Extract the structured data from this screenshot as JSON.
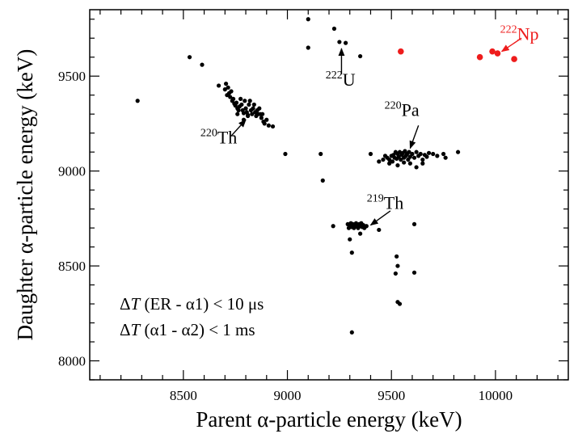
{
  "chart_data": {
    "type": "scatter",
    "title": "",
    "xlabel": "Parent α-particle energy (keV)",
    "ylabel": "Daughter α-particle energy (keV)",
    "xlim": [
      8050,
      10350
    ],
    "ylim": [
      7900,
      9850
    ],
    "xticks": [
      8500,
      9000,
      9500,
      10000
    ],
    "yticks": [
      8000,
      8500,
      9000,
      9500
    ],
    "xtick_labels": [
      "8500",
      "9000",
      "9500",
      "10000"
    ],
    "ytick_labels": [
      "8000",
      "8500",
      "9000",
      "9500"
    ],
    "grid": false,
    "legend": "none",
    "colors": {
      "black_series": "#000000",
      "np222": "#ee1c1c"
    },
    "conditions": [
      {
        "prefix": "Δ",
        "var": "T",
        "text": " (ER - α1) < 10 μs"
      },
      {
        "prefix": "Δ",
        "var": "T",
        "text": " (α1 - α2) < 1 ms"
      }
    ],
    "series": [
      {
        "name": "220Th",
        "mass": "220",
        "element": "Th",
        "color": "#000000",
        "points": [
          [
            8280,
            9370
          ],
          [
            8530,
            9600
          ],
          [
            8590,
            9560
          ],
          [
            8670,
            9450
          ],
          [
            8700,
            9430
          ],
          [
            8705,
            9460
          ],
          [
            8710,
            9400
          ],
          [
            8715,
            9440
          ],
          [
            8720,
            9410
          ],
          [
            8725,
            9390
          ],
          [
            8730,
            9420
          ],
          [
            8735,
            9370
          ],
          [
            8740,
            9380
          ],
          [
            8745,
            9355
          ],
          [
            8750,
            9345
          ],
          [
            8755,
            9360
          ],
          [
            8760,
            9330
          ],
          [
            8765,
            9320
          ],
          [
            8770,
            9340
          ],
          [
            8775,
            9380
          ],
          [
            8780,
            9350
          ],
          [
            8785,
            9320
          ],
          [
            8790,
            9305
          ],
          [
            8795,
            9370
          ],
          [
            8800,
            9330
          ],
          [
            8805,
            9310
          ],
          [
            8810,
            9295
          ],
          [
            8815,
            9350
          ],
          [
            8820,
            9370
          ],
          [
            8825,
            9320
          ],
          [
            8830,
            9300
          ],
          [
            8835,
            9330
          ],
          [
            8840,
            9350
          ],
          [
            8845,
            9310
          ],
          [
            8850,
            9290
          ],
          [
            8855,
            9320
          ],
          [
            8860,
            9300
          ],
          [
            8865,
            9330
          ],
          [
            8870,
            9300
          ],
          [
            8875,
            9280
          ],
          [
            8880,
            9300
          ],
          [
            8885,
            9260
          ],
          [
            8890,
            9250
          ],
          [
            8900,
            9270
          ],
          [
            8910,
            9240
          ],
          [
            8930,
            9235
          ],
          [
            8760,
            9300
          ],
          [
            8790,
            9270
          ],
          [
            8810,
            9290
          ]
        ],
        "label_pos": [
          8670,
          9145
        ],
        "arrow_from": [
          8730,
          9185
        ],
        "arrow_to": [
          8800,
          9270
        ]
      },
      {
        "name": "222U",
        "mass": "222",
        "element": "U",
        "color": "#000000",
        "points": [
          [
            9100,
            9800
          ],
          [
            9100,
            9650
          ],
          [
            9225,
            9750
          ],
          [
            9250,
            9680
          ],
          [
            9280,
            9675
          ],
          [
            9350,
            9605
          ]
        ],
        "label_pos": [
          9255,
          9450
        ],
        "arrow_from": [
          9260,
          9510
        ],
        "arrow_to": [
          9260,
          9645
        ]
      },
      {
        "name": "220Pa",
        "mass": "220",
        "element": "Pa",
        "color": "#000000",
        "points": [
          [
            8990,
            9090
          ],
          [
            9160,
            9090
          ],
          [
            9170,
            8950
          ],
          [
            9400,
            9090
          ],
          [
            9440,
            9050
          ],
          [
            9460,
            9060
          ],
          [
            9470,
            9080
          ],
          [
            9480,
            9070
          ],
          [
            9490,
            9060
          ],
          [
            9500,
            9080
          ],
          [
            9505,
            9050
          ],
          [
            9510,
            9085
          ],
          [
            9515,
            9070
          ],
          [
            9520,
            9100
          ],
          [
            9525,
            9065
          ],
          [
            9530,
            9090
          ],
          [
            9535,
            9075
          ],
          [
            9540,
            9100
          ],
          [
            9545,
            9060
          ],
          [
            9550,
            9085
          ],
          [
            9555,
            9095
          ],
          [
            9560,
            9070
          ],
          [
            9565,
            9105
          ],
          [
            9570,
            9080
          ],
          [
            9575,
            9090
          ],
          [
            9580,
            9060
          ],
          [
            9585,
            9100
          ],
          [
            9590,
            9075
          ],
          [
            9600,
            9090
          ],
          [
            9610,
            9070
          ],
          [
            9620,
            9100
          ],
          [
            9630,
            9080
          ],
          [
            9640,
            9090
          ],
          [
            9650,
            9060
          ],
          [
            9660,
            9085
          ],
          [
            9670,
            9075
          ],
          [
            9680,
            9095
          ],
          [
            9700,
            9090
          ],
          [
            9720,
            9080
          ],
          [
            9750,
            9090
          ],
          [
            9760,
            9070
          ],
          [
            9820,
            9100
          ],
          [
            9490,
            9040
          ],
          [
            9530,
            9030
          ],
          [
            9560,
            9045
          ],
          [
            9590,
            9040
          ],
          [
            9620,
            9020
          ],
          [
            9650,
            9040
          ]
        ],
        "label_pos": [
          9550,
          9290
        ],
        "arrow_from": [
          9630,
          9240
        ],
        "arrow_to": [
          9590,
          9120
        ]
      },
      {
        "name": "219Th",
        "mass": "219",
        "element": "Th",
        "color": "#000000",
        "points": [
          [
            9220,
            8710
          ],
          [
            9290,
            8720
          ],
          [
            9295,
            8700
          ],
          [
            9300,
            8715
          ],
          [
            9305,
            8725
          ],
          [
            9310,
            8705
          ],
          [
            9315,
            8720
          ],
          [
            9320,
            8700
          ],
          [
            9325,
            8715
          ],
          [
            9330,
            8725
          ],
          [
            9335,
            8710
          ],
          [
            9340,
            8700
          ],
          [
            9345,
            8720
          ],
          [
            9350,
            8710
          ],
          [
            9355,
            8725
          ],
          [
            9360,
            8705
          ],
          [
            9365,
            8715
          ],
          [
            9370,
            8700
          ],
          [
            9380,
            8710
          ],
          [
            9350,
            8670
          ],
          [
            9300,
            8640
          ],
          [
            9440,
            8690
          ],
          [
            9310,
            8570
          ],
          [
            9610,
            8720
          ],
          [
            9525,
            8550
          ],
          [
            9530,
            8500
          ],
          [
            9520,
            8460
          ],
          [
            9610,
            8465
          ],
          [
            9530,
            8310
          ],
          [
            9540,
            8300
          ],
          [
            9310,
            8150
          ]
        ],
        "label_pos": [
          9470,
          8800
        ],
        "arrow_from": [
          9495,
          8790
        ],
        "arrow_to": [
          9400,
          8715
        ]
      },
      {
        "name": "222Np",
        "mass": "222",
        "element": "Np",
        "color": "#ee1c1c",
        "points": [
          [
            9545,
            9630
          ],
          [
            9925,
            9600
          ],
          [
            9985,
            9630
          ],
          [
            10010,
            9620
          ],
          [
            10090,
            9590
          ]
        ],
        "label_pos": [
          10115,
          9690
        ],
        "arrow_from": [
          10125,
          9700
        ],
        "arrow_to": [
          10030,
          9630
        ]
      }
    ]
  }
}
